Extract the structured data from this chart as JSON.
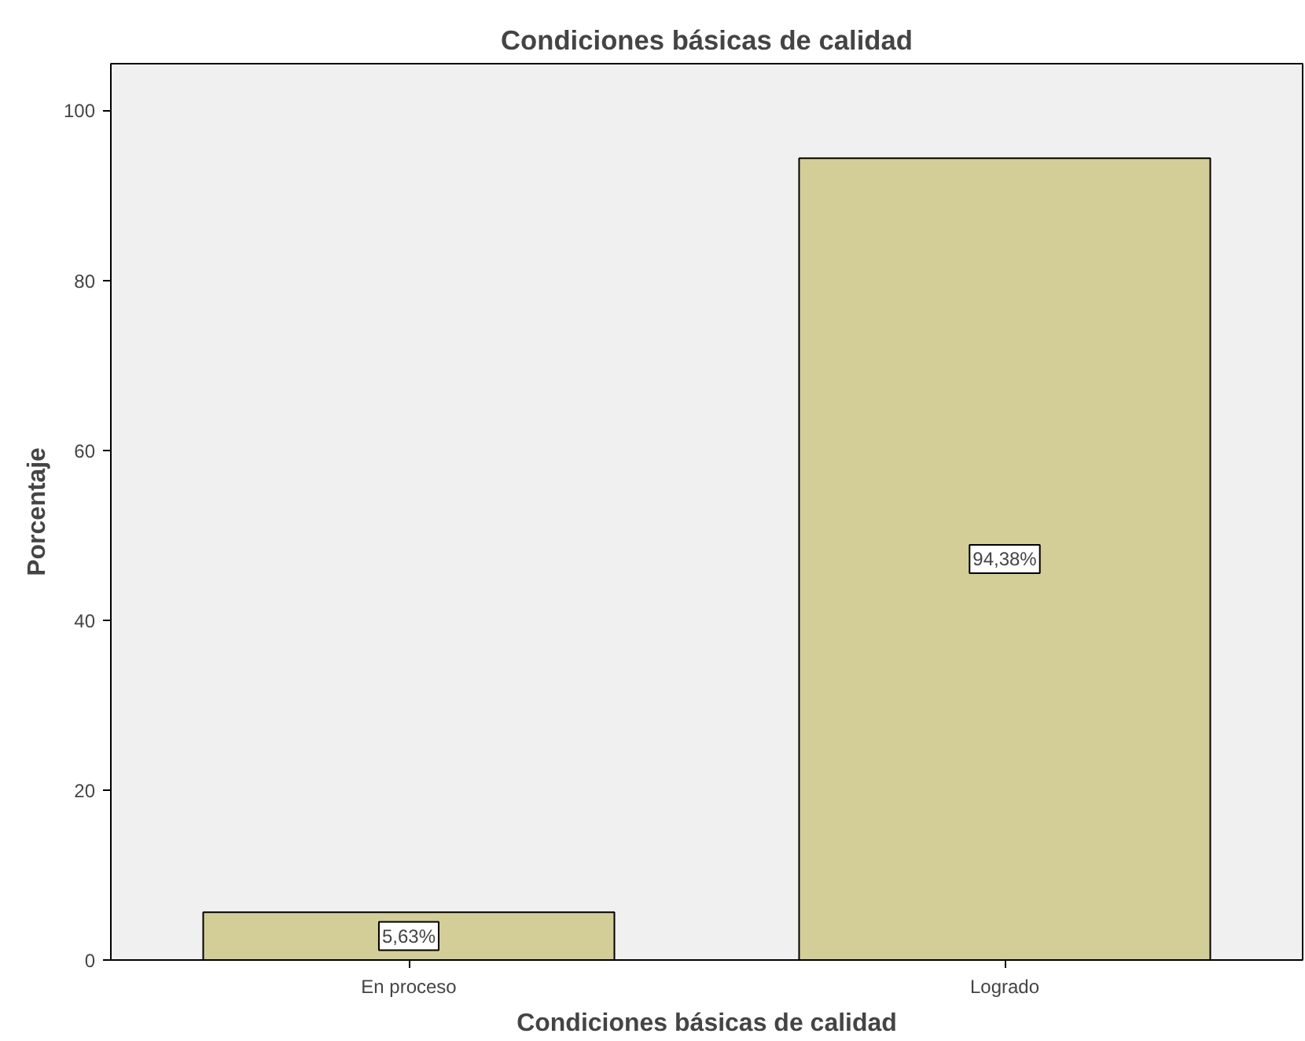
{
  "chart_data": {
    "type": "bar",
    "title": "Condiciones básicas de calidad",
    "xlabel": "Condiciones básicas de calidad",
    "ylabel": "Porcentaje",
    "categories": [
      "En proceso",
      "Logrado"
    ],
    "values": [
      5.63,
      94.38
    ],
    "value_labels": [
      "5,63%",
      "94,38%"
    ],
    "color": "#d3ce97",
    "ylim": [
      0,
      105.5
    ],
    "yticks": [
      0,
      20,
      40,
      60,
      80,
      100
    ],
    "grid": false
  }
}
